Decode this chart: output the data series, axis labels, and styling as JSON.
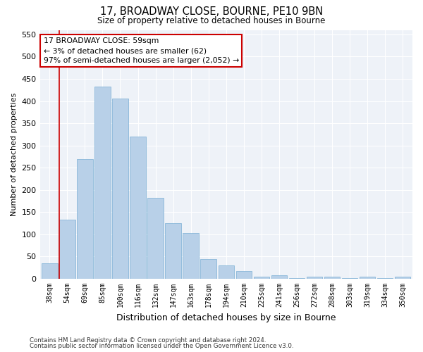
{
  "title1": "17, BROADWAY CLOSE, BOURNE, PE10 9BN",
  "title2": "Size of property relative to detached houses in Bourne",
  "xlabel": "Distribution of detached houses by size in Bourne",
  "ylabel": "Number of detached properties",
  "bar_labels": [
    "38sqm",
    "54sqm",
    "69sqm",
    "85sqm",
    "100sqm",
    "116sqm",
    "132sqm",
    "147sqm",
    "163sqm",
    "178sqm",
    "194sqm",
    "210sqm",
    "225sqm",
    "241sqm",
    "256sqm",
    "272sqm",
    "288sqm",
    "303sqm",
    "319sqm",
    "334sqm",
    "350sqm"
  ],
  "bar_values": [
    35,
    133,
    270,
    432,
    405,
    320,
    183,
    125,
    103,
    45,
    30,
    17,
    5,
    8,
    2,
    5,
    5,
    2,
    5,
    2,
    5
  ],
  "bar_color": "#b8d0e8",
  "bar_edge_color": "#7aafd4",
  "annotation_text": "17 BROADWAY CLOSE: 59sqm\n← 3% of detached houses are smaller (62)\n97% of semi-detached houses are larger (2,052) →",
  "annotation_box_color": "#ffffff",
  "annotation_box_edge": "#cc0000",
  "ylim": [
    0,
    560
  ],
  "yticks": [
    0,
    50,
    100,
    150,
    200,
    250,
    300,
    350,
    400,
    450,
    500,
    550
  ],
  "vline_color": "#cc0000",
  "background_color": "#eef2f8",
  "grid_color": "#ffffff",
  "footer1": "Contains HM Land Registry data © Crown copyright and database right 2024.",
  "footer2": "Contains public sector information licensed under the Open Government Licence v3.0."
}
